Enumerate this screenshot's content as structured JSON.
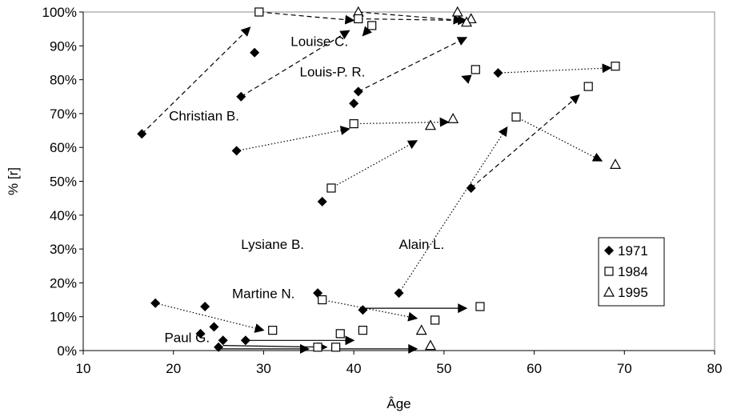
{
  "chart_data": {
    "type": "scatter",
    "title": "",
    "xlabel": "Âge",
    "ylabel": "% [r]",
    "xlim": [
      10,
      80
    ],
    "ylim": [
      0,
      100
    ],
    "x_ticks": [
      10,
      20,
      30,
      40,
      50,
      60,
      70,
      80
    ],
    "y_ticks": [
      0,
      10,
      20,
      30,
      40,
      50,
      60,
      70,
      80,
      90,
      100
    ],
    "y_tick_suffix": "%",
    "grid": false,
    "legend_position": "right",
    "series": [
      {
        "name": "1971",
        "marker": "diamond-filled"
      },
      {
        "name": "1984",
        "marker": "square-open"
      },
      {
        "name": "1995",
        "marker": "triangle-open"
      }
    ],
    "speakers": [
      {
        "label": "Louise C.",
        "label_at": [
          33,
          90
        ],
        "points": [
          {
            "series": "1971",
            "x": 29,
            "y": 88
          }
        ]
      },
      {
        "label": "Christian B.",
        "label_at": [
          19.5,
          68
        ],
        "line_style": "dashed",
        "points": [
          {
            "series": "1971",
            "x": 16.5,
            "y": 64
          },
          {
            "series": "1984",
            "x": 29.5,
            "y": 100
          },
          {
            "series": "1995",
            "x": 40.5,
            "y": 100
          }
        ]
      },
      {
        "label": "Louis-P. R.",
        "label_at": [
          34,
          81
        ],
        "line_style": "dashed",
        "points": [
          {
            "series": "1971",
            "x": 27.5,
            "y": 75
          },
          {
            "series": "1984",
            "x": 40.5,
            "y": 98
          },
          {
            "series": "1995",
            "x": 53,
            "y": 98
          }
        ]
      },
      {
        "label": "",
        "line_style": "dashed",
        "points": [
          {
            "series": "1971",
            "x": 40.5,
            "y": 76.5
          },
          {
            "series": "1984",
            "x": 42,
            "y": 96
          },
          {
            "series": "1995",
            "x": 52.5,
            "y": 97
          }
        ]
      },
      {
        "label": "",
        "line_style": "dotted",
        "points": [
          {
            "series": "1971",
            "x": 40,
            "y": 73
          },
          {
            "series": "1995",
            "x": 51.5,
            "y": 100
          }
        ]
      },
      {
        "label": "",
        "line_style": "solid",
        "points": [
          {
            "series": "1984",
            "x": 53.5,
            "y": 83
          }
        ]
      },
      {
        "label": "",
        "line_style": "dotted",
        "points": [
          {
            "series": "1971",
            "x": 56,
            "y": 82
          },
          {
            "series": "1984",
            "x": 69,
            "y": 84
          }
        ]
      },
      {
        "label": "",
        "line_style": "dotted",
        "points": [
          {
            "series": "1971",
            "x": 27,
            "y": 59
          },
          {
            "series": "1984",
            "x": 40,
            "y": 67
          },
          {
            "series": "1995",
            "x": 51,
            "y": 68.5
          }
        ]
      },
      {
        "label": "",
        "line_style": "dotted",
        "points": [
          {
            "series": "1971",
            "x": 36.5,
            "y": 44
          },
          {
            "series": "1984",
            "x": 37.5,
            "y": 48
          },
          {
            "series": "1995",
            "x": 48.5,
            "y": 66.5
          }
        ]
      },
      {
        "label": "Lysiane B.",
        "label_at": [
          27.5,
          30
        ],
        "points": []
      },
      {
        "label": "Alain L.",
        "label_at": [
          45,
          30
        ],
        "line_style": "dashed",
        "points": [
          {
            "series": "1971",
            "x": 45,
            "y": 17
          },
          {
            "series": "1984",
            "x": 58,
            "y": 69
          },
          {
            "series": "1995",
            "x": 69,
            "y": 55
          }
        ]
      },
      {
        "label": "",
        "line_style": "dashed",
        "points": [
          {
            "series": "1971",
            "x": 53,
            "y": 48
          },
          {
            "series": "1984",
            "x": 66,
            "y": 78
          }
        ]
      },
      {
        "label": "Martine N.",
        "label_at": [
          26.5,
          15.5
        ],
        "line_style": "dotted",
        "points": [
          {
            "series": "1971",
            "x": 36,
            "y": 17
          },
          {
            "series": "1984",
            "x": 36.5,
            "y": 15
          },
          {
            "series": "1995",
            "x": 47.5,
            "y": 6
          }
        ]
      },
      {
        "label": "",
        "line_style": "solid",
        "points": [
          {
            "series": "1984",
            "x": 54,
            "y": 13
          }
        ]
      },
      {
        "label": "",
        "line_style": "dotted",
        "points": [
          {
            "series": "1971",
            "x": 18,
            "y": 14
          },
          {
            "series": "1984",
            "x": 31,
            "y": 6
          }
        ]
      },
      {
        "label": "",
        "line_style": "dotted",
        "points": [
          {
            "series": "1971",
            "x": 41,
            "y": 12
          },
          {
            "series": "1984",
            "x": 49,
            "y": 9
          }
        ]
      },
      {
        "label": "Paul G.",
        "label_at": [
          19,
          2.5
        ],
        "line_style": "solid",
        "points": [
          {
            "series": "1971",
            "x": 28,
            "y": 3
          },
          {
            "series": "1984",
            "x": 41,
            "y": 6
          }
        ]
      },
      {
        "label": "",
        "line_style": "solid",
        "points": [
          {
            "series": "1971",
            "x": 23.5,
            "y": 13
          },
          {
            "series": "1971",
            "x": 23,
            "y": 5
          },
          {
            "series": "1971",
            "x": 24.5,
            "y": 7
          },
          {
            "series": "1971",
            "x": 25.5,
            "y": 3
          },
          {
            "series": "1984",
            "x": 38.5,
            "y": 5
          }
        ]
      },
      {
        "label": "",
        "line_style": "solid",
        "points": [
          {
            "series": "1971",
            "x": 25,
            "y": 1
          },
          {
            "series": "1984",
            "x": 38,
            "y": 1
          },
          {
            "series": "1995",
            "x": 48.5,
            "y": 1.5
          }
        ]
      },
      {
        "label": "",
        "line_style": "solid",
        "points": [
          {
            "series": "1984",
            "x": 36,
            "y": 1
          }
        ]
      }
    ],
    "arrows": [
      {
        "style": "dashed",
        "from": [
          16.5,
          64
        ],
        "to": [
          28.5,
          95.5
        ]
      },
      {
        "style": "dashed",
        "from": [
          29.5,
          100
        ],
        "to": [
          40,
          97.5
        ]
      },
      {
        "style": "dashed",
        "from": [
          40.5,
          100
        ],
        "to": [
          52,
          97.5
        ]
      },
      {
        "style": "dashed",
        "from": [
          27.5,
          75
        ],
        "to": [
          39.5,
          94.5
        ]
      },
      {
        "style": "dashed",
        "from": [
          40.5,
          98
        ],
        "to": [
          52.5,
          97.5
        ]
      },
      {
        "style": "dashed",
        "from": [
          40.5,
          76.5
        ],
        "to": [
          52.5,
          92.5
        ]
      },
      {
        "style": "dotted",
        "from": [
          42,
          96
        ],
        "to": [
          41,
          93
        ]
      },
      {
        "style": "dotted",
        "from": [
          52.5,
          80.5
        ],
        "to": [
          52,
          81
        ]
      },
      {
        "style": "dotted",
        "from": [
          56,
          82
        ],
        "to": [
          68.5,
          83.5
        ]
      },
      {
        "style": "dotted",
        "from": [
          27,
          59
        ],
        "to": [
          39.5,
          65.5
        ]
      },
      {
        "style": "dotted",
        "from": [
          40,
          67
        ],
        "to": [
          50.5,
          67.5
        ]
      },
      {
        "style": "dotted",
        "from": [
          37.5,
          48
        ],
        "to": [
          47,
          62
        ]
      },
      {
        "style": "dotted",
        "from": [
          45,
          17
        ],
        "to": [
          57,
          66
        ]
      },
      {
        "style": "dashed",
        "from": [
          53,
          48
        ],
        "to": [
          65,
          75.5
        ]
      },
      {
        "style": "dotted",
        "from": [
          58,
          69
        ],
        "to": [
          67.5,
          56
        ]
      },
      {
        "style": "dotted",
        "from": [
          18,
          14
        ],
        "to": [
          30,
          6
        ]
      },
      {
        "style": "dotted",
        "from": [
          36.5,
          15
        ],
        "to": [
          47,
          9.5
        ]
      },
      {
        "style": "solid",
        "from": [
          41,
          12.5
        ],
        "to": [
          52.5,
          12.5
        ]
      },
      {
        "style": "solid",
        "from": [
          28,
          3
        ],
        "to": [
          40,
          3
        ]
      },
      {
        "style": "solid",
        "from": [
          25.5,
          1.5
        ],
        "to": [
          37,
          1
        ]
      },
      {
        "style": "solid",
        "from": [
          25,
          0.5
        ],
        "to": [
          35,
          0.5
        ]
      },
      {
        "style": "solid",
        "from": [
          38,
          0.5
        ],
        "to": [
          47,
          0.5
        ]
      }
    ]
  }
}
